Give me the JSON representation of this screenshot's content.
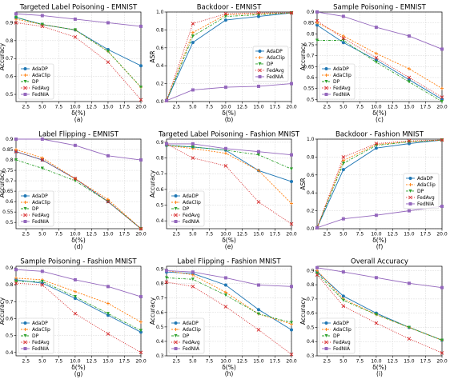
{
  "legend_names": [
    "AdaDP",
    "AdaClip",
    "DP",
    "FedAvg",
    "FedNIA"
  ],
  "legend_colors": [
    "#1f77b4",
    "#ff7f0e",
    "#2ca02c",
    "#d62728",
    "#9467bd"
  ],
  "legend_markers": [
    "circle",
    "plus",
    "triangle-down",
    "x",
    "square"
  ],
  "x_ticks": [
    2.5,
    5.0,
    7.5,
    10.0,
    12.5,
    15.0,
    17.5,
    20.0
  ],
  "chart_data": [
    {
      "type": "line",
      "title": "Targeted Label Poisoning - EMNIST",
      "subplot_label": "(a)",
      "xlabel": "δ(%)",
      "ylabel": "Accuracy",
      "xlim": [
        1,
        20
      ],
      "ylim": [
        0.46,
        0.96
      ],
      "yticks": [
        0.5,
        0.6,
        0.7,
        0.8,
        0.9
      ],
      "legend": "lower-left",
      "grid": true,
      "x": [
        1,
        5,
        10,
        15,
        20
      ],
      "series": [
        {
          "name": "AdaDP",
          "values": [
            0.93,
            0.89,
            0.86,
            0.75,
            0.66
          ]
        },
        {
          "name": "AdaClip",
          "values": [
            0.92,
            0.89,
            0.86,
            0.74,
            0.54
          ]
        },
        {
          "name": "DP",
          "values": [
            0.93,
            0.89,
            0.86,
            0.74,
            0.54
          ]
        },
        {
          "name": "FedAvg",
          "values": [
            0.9,
            0.88,
            0.82,
            0.68,
            0.47
          ]
        },
        {
          "name": "FedNIA",
          "values": [
            0.95,
            0.94,
            0.92,
            0.9,
            0.88
          ]
        }
      ]
    },
    {
      "type": "line",
      "title": "Backdoor - EMNIST",
      "subplot_label": "(b)",
      "xlabel": "δ(%)",
      "ylabel": "ASR",
      "xlim": [
        1,
        20
      ],
      "ylim": [
        0,
        1.0
      ],
      "yticks": [
        0.0,
        0.2,
        0.4,
        0.6,
        0.8,
        1.0
      ],
      "legend": "center-right",
      "grid": true,
      "x": [
        1,
        5,
        10,
        15,
        20
      ],
      "series": [
        {
          "name": "AdaDP",
          "values": [
            0.01,
            0.66,
            0.91,
            0.95,
            0.99
          ]
        },
        {
          "name": "AdaClip",
          "values": [
            0.01,
            0.77,
            0.97,
            0.98,
            0.99
          ]
        },
        {
          "name": "DP",
          "values": [
            0.01,
            0.73,
            0.95,
            0.97,
            0.99
          ]
        },
        {
          "name": "FedAvg",
          "values": [
            0.01,
            0.87,
            0.98,
            0.99,
            0.99
          ]
        },
        {
          "name": "FedNIA",
          "values": [
            0.01,
            0.13,
            0.16,
            0.17,
            0.2
          ]
        }
      ]
    },
    {
      "type": "line",
      "title": "Sample Poisoning - EMNIST",
      "subplot_label": "(c)",
      "xlabel": "δ(%)",
      "ylabel": "Accuracy",
      "xlim": [
        1,
        20
      ],
      "ylim": [
        0.49,
        0.9
      ],
      "yticks": [
        0.5,
        0.55,
        0.6,
        0.65,
        0.7,
        0.75,
        0.8,
        0.85,
        0.9
      ],
      "legend": "lower-left",
      "grid": true,
      "x": [
        1,
        5,
        10,
        15,
        20
      ],
      "series": [
        {
          "name": "AdaDP",
          "values": [
            0.84,
            0.76,
            0.68,
            0.59,
            0.5
          ]
        },
        {
          "name": "AdaClip",
          "values": [
            0.85,
            0.79,
            0.71,
            0.64,
            0.55
          ]
        },
        {
          "name": "DP",
          "values": [
            0.77,
            0.77,
            0.67,
            0.58,
            0.49
          ]
        },
        {
          "name": "FedAvg",
          "values": [
            0.86,
            0.78,
            0.69,
            0.6,
            0.51
          ]
        },
        {
          "name": "FedNIA",
          "values": [
            0.9,
            0.88,
            0.83,
            0.79,
            0.73
          ]
        }
      ]
    },
    {
      "type": "line",
      "title": "Label Flipping - EMNIST",
      "subplot_label": "(d)",
      "xlabel": "δ(%)",
      "ylabel": "Accuracy",
      "xlim": [
        1,
        20
      ],
      "ylim": [
        0.47,
        0.9
      ],
      "yticks": [
        0.5,
        0.55,
        0.6,
        0.65,
        0.7,
        0.75,
        0.8,
        0.85,
        0.9
      ],
      "legend": "lower-left",
      "grid": true,
      "x": [
        1,
        5,
        10,
        15,
        20
      ],
      "series": [
        {
          "name": "AdaDP",
          "values": [
            0.84,
            0.8,
            0.71,
            0.6,
            0.47
          ]
        },
        {
          "name": "AdaClip",
          "values": [
            0.85,
            0.81,
            0.71,
            0.61,
            0.47
          ]
        },
        {
          "name": "DP",
          "values": [
            0.8,
            0.76,
            0.7,
            0.6,
            0.47
          ]
        },
        {
          "name": "FedAvg",
          "values": [
            0.84,
            0.8,
            0.71,
            0.6,
            0.47
          ]
        },
        {
          "name": "FedNIA",
          "values": [
            0.9,
            0.9,
            0.87,
            0.82,
            0.8
          ]
        }
      ]
    },
    {
      "type": "line",
      "title": "Targeted Label Poisoning - Fashion MNIST",
      "subplot_label": "(e)",
      "xlabel": "δ(%)",
      "ylabel": "Accuracy",
      "xlim": [
        1,
        20
      ],
      "ylim": [
        0.35,
        0.92
      ],
      "yticks": [
        0.4,
        0.5,
        0.6,
        0.7,
        0.8,
        0.9
      ],
      "legend": "lower-left",
      "grid": true,
      "x": [
        1,
        5,
        10,
        15,
        20
      ],
      "series": [
        {
          "name": "AdaDP",
          "values": [
            0.88,
            0.87,
            0.85,
            0.72,
            0.65
          ]
        },
        {
          "name": "AdaClip",
          "values": [
            0.88,
            0.86,
            0.83,
            0.72,
            0.51
          ]
        },
        {
          "name": "DP",
          "values": [
            0.88,
            0.87,
            0.85,
            0.82,
            0.73
          ]
        },
        {
          "name": "FedAvg",
          "values": [
            0.89,
            0.8,
            0.75,
            0.52,
            0.38
          ]
        },
        {
          "name": "FedNIA",
          "values": [
            0.89,
            0.89,
            0.86,
            0.84,
            0.82
          ]
        }
      ]
    },
    {
      "type": "line",
      "title": "Backdoor - Fashion MNIST",
      "subplot_label": "(f)",
      "xlabel": "δ(%)",
      "ylabel": "ASR",
      "xlim": [
        1,
        20
      ],
      "ylim": [
        0,
        1.0
      ],
      "yticks": [
        0.0,
        0.2,
        0.4,
        0.6,
        0.8,
        1.0
      ],
      "legend": "center-right",
      "grid": true,
      "x": [
        1,
        5,
        10,
        15,
        20
      ],
      "series": [
        {
          "name": "AdaDP",
          "values": [
            0.01,
            0.66,
            0.9,
            0.95,
            0.99
          ]
        },
        {
          "name": "AdaClip",
          "values": [
            0.01,
            0.76,
            0.94,
            0.97,
            0.99
          ]
        },
        {
          "name": "DP",
          "values": [
            0.01,
            0.73,
            0.93,
            0.97,
            0.99
          ]
        },
        {
          "name": "FedAvg",
          "values": [
            0.01,
            0.8,
            0.95,
            0.98,
            0.99
          ]
        },
        {
          "name": "FedNIA",
          "values": [
            0.01,
            0.11,
            0.15,
            0.2,
            0.25
          ]
        }
      ]
    },
    {
      "type": "line",
      "title": "Sample Poisoning - Fashion MNIST",
      "subplot_label": "(g)",
      "xlabel": "δ(%)",
      "ylabel": "Accuracy",
      "xlim": [
        1,
        20
      ],
      "ylim": [
        0.38,
        0.91
      ],
      "yticks": [
        0.4,
        0.5,
        0.6,
        0.7,
        0.8,
        0.9
      ],
      "legend": "lower-left",
      "grid": true,
      "x": [
        1,
        5,
        10,
        15,
        20
      ],
      "series": [
        {
          "name": "AdaDP",
          "values": [
            0.83,
            0.81,
            0.72,
            0.62,
            0.52
          ]
        },
        {
          "name": "AdaClip",
          "values": [
            0.84,
            0.83,
            0.76,
            0.69,
            0.58
          ]
        },
        {
          "name": "DP",
          "values": [
            0.82,
            0.82,
            0.73,
            0.63,
            0.53
          ]
        },
        {
          "name": "FedAvg",
          "values": [
            0.81,
            0.8,
            0.63,
            0.51,
            0.4
          ]
        },
        {
          "name": "FedNIA",
          "values": [
            0.89,
            0.88,
            0.83,
            0.79,
            0.73
          ]
        }
      ]
    },
    {
      "type": "line",
      "title": "Label Flipping - Fashion MNIST",
      "subplot_label": "(h)",
      "xlabel": "δ(%)",
      "ylabel": "Accuracy",
      "xlim": [
        1,
        20
      ],
      "ylim": [
        0.3,
        0.92
      ],
      "yticks": [
        0.3,
        0.4,
        0.5,
        0.6,
        0.7,
        0.8,
        0.9
      ],
      "legend": "lower-left",
      "grid": true,
      "x": [
        1,
        5,
        10,
        15,
        20
      ],
      "series": [
        {
          "name": "AdaDP",
          "values": [
            0.88,
            0.87,
            0.79,
            0.62,
            0.48
          ]
        },
        {
          "name": "AdaClip",
          "values": [
            0.89,
            0.86,
            0.74,
            0.59,
            0.52
          ]
        },
        {
          "name": "DP",
          "values": [
            0.84,
            0.83,
            0.72,
            0.59,
            0.53
          ]
        },
        {
          "name": "FedAvg",
          "values": [
            0.81,
            0.78,
            0.64,
            0.48,
            0.31
          ]
        },
        {
          "name": "FedNIA",
          "values": [
            0.89,
            0.88,
            0.84,
            0.79,
            0.78
          ]
        }
      ]
    },
    {
      "type": "line",
      "title": "Overall Accuracy",
      "subplot_label": "(i)",
      "xlabel": "δ(%)",
      "ylabel": "Accuracy",
      "xlim": [
        1,
        20
      ],
      "ylim": [
        0.3,
        0.93
      ],
      "yticks": [
        0.3,
        0.4,
        0.5,
        0.6,
        0.7,
        0.8,
        0.9
      ],
      "legend": "lower-left",
      "grid": true,
      "x": [
        1,
        5,
        10,
        15,
        20
      ],
      "series": [
        {
          "name": "AdaDP",
          "values": [
            0.89,
            0.72,
            0.6,
            0.5,
            0.41
          ]
        },
        {
          "name": "AdaClip",
          "values": [
            0.9,
            0.7,
            0.59,
            0.5,
            0.41
          ]
        },
        {
          "name": "DP",
          "values": [
            0.88,
            0.69,
            0.59,
            0.5,
            0.41
          ]
        },
        {
          "name": "FedAvg",
          "values": [
            0.87,
            0.65,
            0.53,
            0.42,
            0.32
          ]
        },
        {
          "name": "FedNIA",
          "values": [
            0.92,
            0.89,
            0.85,
            0.81,
            0.78
          ]
        }
      ]
    }
  ]
}
